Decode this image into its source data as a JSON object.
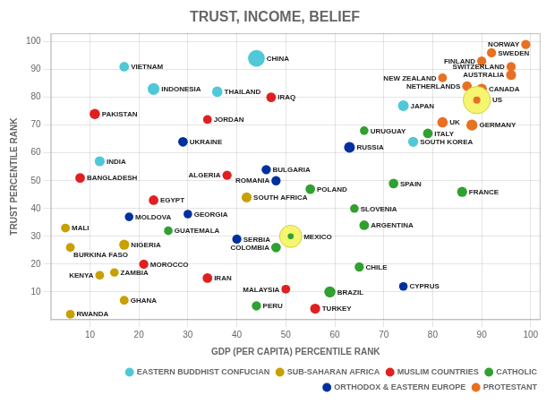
{
  "chart_data": {
    "type": "bubble",
    "title": "TRUST, INCOME, BELIEF",
    "x_label": "GDP (PER CAPITA) PERCENTILE RANK",
    "y_label": "TRUST PERCENTILE RANK",
    "xlim": [
      2,
      102
    ],
    "ylim": [
      0,
      103
    ],
    "xticks": [
      10,
      20,
      30,
      40,
      50,
      60,
      70,
      80,
      90,
      100
    ],
    "yticks": [
      10,
      20,
      30,
      40,
      50,
      60,
      70,
      80,
      90,
      100
    ],
    "grid": true,
    "legend": "lower right",
    "series": [
      {
        "name": "EASTERN BUDDHIST CONFUCIAN",
        "color": "#4FC8D8",
        "labels": [
          "VIETNAM",
          "CHINA",
          "INDONESIA",
          "THAILAND",
          "INDIA",
          "JAPAN",
          "SOUTH KOREA"
        ],
        "x": [
          17,
          44,
          23,
          36,
          12,
          74,
          76
        ],
        "values": [
          91,
          94,
          83,
          82,
          57,
          77,
          64
        ],
        "sizes": [
          60,
          180,
          90,
          70,
          65,
          75,
          65
        ]
      },
      {
        "name": "SUB-SAHARAN AFRICA",
        "color": "#C8A000",
        "labels": [
          "MALI",
          "BURKINA FASO",
          "NIGERIA",
          "GHANA",
          "KENYA",
          "ZAMBIA",
          "RWANDA",
          "SOUTH AFRICA"
        ],
        "x": [
          5,
          6,
          17,
          17,
          12,
          15,
          6,
          42
        ],
        "values": [
          33,
          26,
          27,
          7,
          16,
          17,
          2,
          44
        ],
        "sizes": [
          50,
          50,
          65,
          50,
          50,
          48,
          50,
          65
        ]
      },
      {
        "name": "MUSLIM COUNTRIES",
        "color": "#E02020",
        "labels": [
          "IRAQ",
          "JORDAN",
          "PAKISTAN",
          "ALGERIA",
          "IRAN",
          "TURKEY",
          "MALAYSIA",
          "BANGLADESH",
          "MOROCCO",
          "EGYPT"
        ],
        "x": [
          47,
          34,
          11,
          38,
          34,
          56,
          50,
          8,
          21,
          23
        ],
        "values": [
          80,
          72,
          74,
          52,
          15,
          4,
          11,
          51,
          20,
          43
        ],
        "sizes": [
          60,
          50,
          70,
          55,
          60,
          65,
          50,
          60,
          55,
          60
        ]
      },
      {
        "name": "CATHOLIC",
        "color": "#30A030",
        "labels": [
          "GUATEMALA",
          "COLOMBIA",
          "PERU",
          "BRAZIL",
          "CHILE",
          "MEXICO",
          "ARGENTINA",
          "URUGUAY",
          "POLAND",
          "SLOVENIA",
          "SPAIN",
          "ITALY",
          "FRANCE"
        ],
        "x": [
          26,
          48,
          44,
          59,
          65,
          51,
          66,
          66,
          55,
          64,
          72,
          79,
          86
        ],
        "values": [
          32,
          26,
          5,
          10,
          19,
          30,
          34,
          68,
          47,
          40,
          49,
          67,
          46
        ],
        "sizes": [
          48,
          60,
          55,
          80,
          55,
          320,
          60,
          48,
          60,
          48,
          60,
          60,
          65
        ],
        "colors": [
          "#30A030",
          "#30A030",
          "#30A030",
          "#30A030",
          "#30A030",
          "#F5F570",
          "#30A030",
          "#30A030",
          "#30A030",
          "#30A030",
          "#30A030",
          "#30A030",
          "#30A030"
        ]
      },
      {
        "name": "ORTHODOX & EASTERN EUROPE",
        "color": "#0030A0",
        "labels": [
          "MOLDOVA",
          "UKRAINE",
          "GEORGIA",
          "SERBIA",
          "BULGARIA",
          "ROMANIA",
          "CYPRUS",
          "RUSSIA"
        ],
        "x": [
          18,
          29,
          30,
          40,
          46,
          48,
          74,
          63
        ],
        "values": [
          37,
          64,
          38,
          29,
          54,
          50,
          12,
          62
        ],
        "sizes": [
          48,
          60,
          48,
          55,
          55,
          55,
          48,
          75
        ]
      },
      {
        "name": "PROTESTANT",
        "color": "#E87020",
        "labels": [
          "UK",
          "GERMANY",
          "NETHERLANDS",
          "NEW ZEALAND",
          "AUSTRALIA",
          "CANADA",
          "US",
          "SWEDEN",
          "NORWAY",
          "FINLAND",
          "SWITZERLAND"
        ],
        "x": [
          82,
          88,
          87,
          82,
          96,
          90,
          89,
          92,
          99,
          90,
          96
        ],
        "values": [
          71,
          70,
          84,
          87,
          88,
          83,
          79,
          96,
          99,
          93,
          91
        ],
        "sizes": [
          70,
          80,
          60,
          50,
          65,
          70,
          480,
          55,
          55,
          55,
          55
        ],
        "colors": [
          "#E87020",
          "#E87020",
          "#E87020",
          "#E87020",
          "#E87020",
          "#E87020",
          "#F5F570",
          "#E87020",
          "#E87020",
          "#E87020",
          "#E87020"
        ]
      }
    ]
  }
}
